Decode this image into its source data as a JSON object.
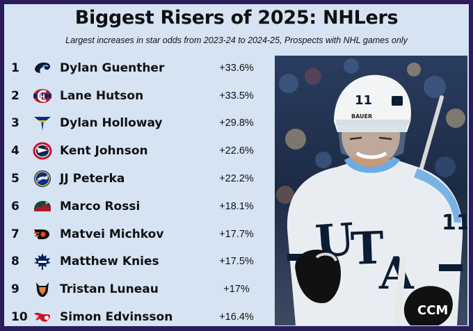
{
  "header": {
    "title": "Biggest Risers of 2025: NHLers",
    "subtitle": "Largest increases in star odds from 2023-24 to 2024-25, Prospects with NHL games only"
  },
  "players": [
    {
      "rank": "1",
      "name": "Dylan Guenther",
      "change": "+33.6%",
      "logo": "utah-logo-icon"
    },
    {
      "rank": "2",
      "name": "Lane Hutson",
      "change": "+33.5%",
      "logo": "canadiens-logo-icon"
    },
    {
      "rank": "3",
      "name": "Dylan Holloway",
      "change": "+29.8%",
      "logo": "blues-logo-icon"
    },
    {
      "rank": "4",
      "name": "Kent Johnson",
      "change": "+22.6%",
      "logo": "blue-jackets-logo-icon"
    },
    {
      "rank": "5",
      "name": "JJ Peterka",
      "change": "+22.2%",
      "logo": "sabres-logo-icon"
    },
    {
      "rank": "6",
      "name": "Marco Rossi",
      "change": "+18.1%",
      "logo": "wild-logo-icon"
    },
    {
      "rank": "7",
      "name": "Matvei Michkov",
      "change": "+17.7%",
      "logo": "flyers-logo-icon"
    },
    {
      "rank": "8",
      "name": "Matthew Knies",
      "change": "+17.5%",
      "logo": "maple-leafs-logo-icon"
    },
    {
      "rank": "9",
      "name": "Tristan Luneau",
      "change": "+17%",
      "logo": "ducks-logo-icon"
    },
    {
      "rank": "10",
      "name": "Simon Edvinsson",
      "change": "+16.4%",
      "logo": "red-wings-logo-icon"
    }
  ],
  "photo": {
    "jersey_number": "11",
    "jersey_text": "UTAH",
    "helmet_brand": "BAUER",
    "glove_brand": "CCM"
  },
  "colors": {
    "frame": "#2b1d5c",
    "card": "#d5e3f3",
    "text": "#111111",
    "jersey": "#e9edf1",
    "jersey_accent": "#6cace4",
    "jersey_letters": "#0b1c33"
  }
}
